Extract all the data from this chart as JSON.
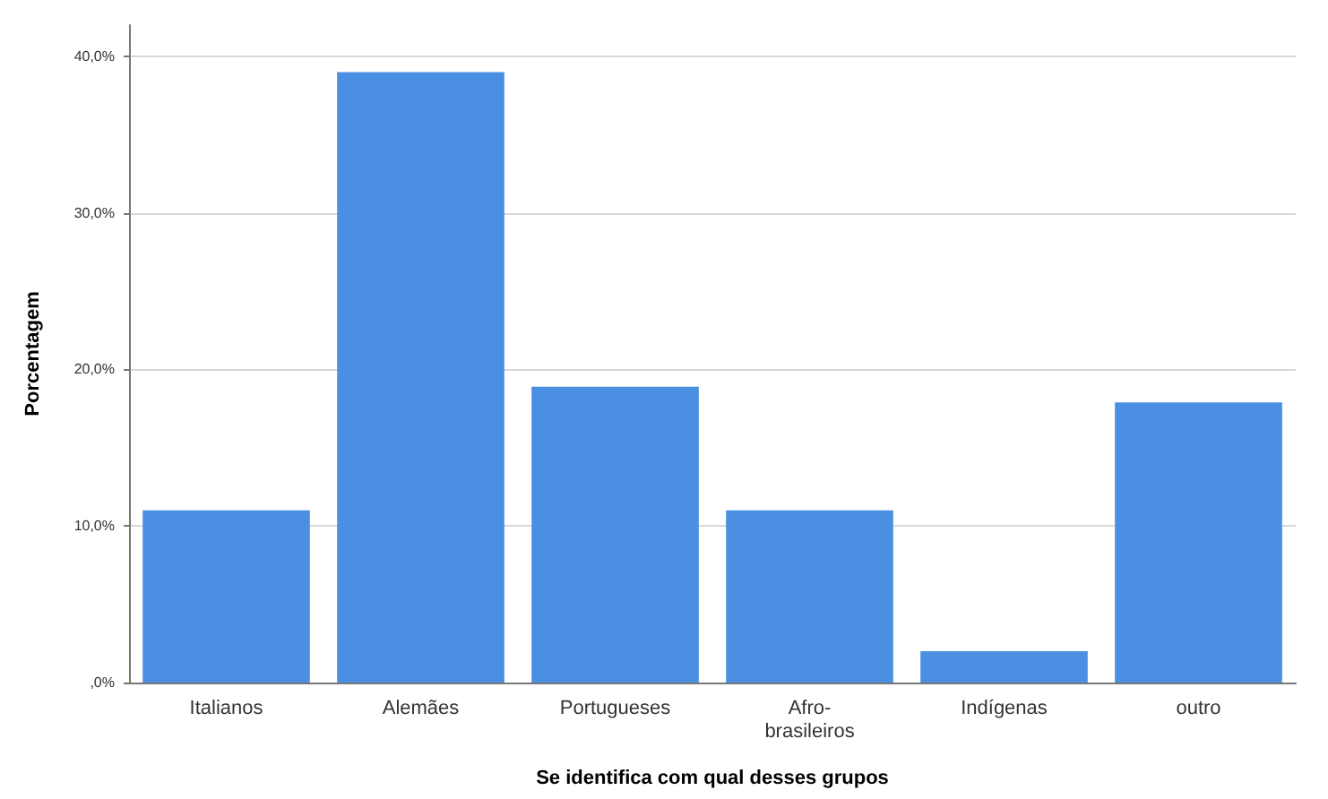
{
  "chart_data": {
    "type": "bar",
    "xlabel": "Se identifica com qual desses grupos",
    "ylabel": "Porcentagem",
    "categories": [
      "Italianos",
      "Alemães",
      "Portugueses",
      "Afro-brasileiros",
      "Indígenas",
      "outro"
    ],
    "values": [
      11.0,
      39.0,
      18.9,
      11.0,
      2.0,
      17.9
    ],
    "color": "#4a8fe2",
    "ylim": [
      0,
      42
    ],
    "yticks": [
      {
        "value": 0,
        "label": ",0%"
      },
      {
        "value": 10,
        "label": "10,0%"
      },
      {
        "value": 20,
        "label": "20,0%"
      },
      {
        "value": 30,
        "label": "30,0%"
      },
      {
        "value": 40,
        "label": "40,0%"
      }
    ],
    "grid": "y"
  }
}
